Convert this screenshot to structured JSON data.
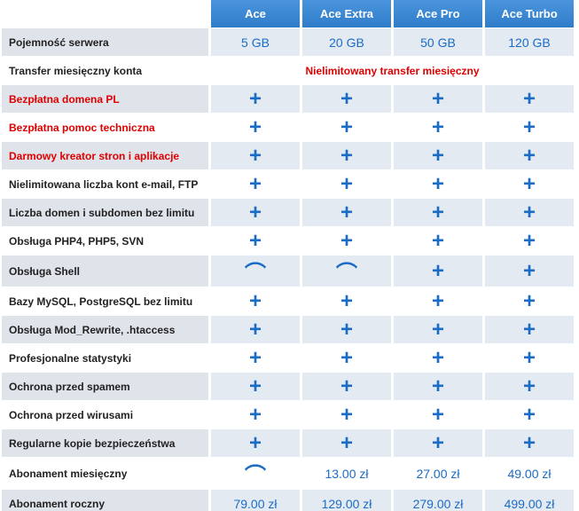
{
  "table": {
    "headers": [
      "Ace",
      "Ace Extra",
      "Ace Pro",
      "Ace Turbo"
    ],
    "rows": [
      {
        "label": "Pojemność serwera",
        "cells": [
          "5 GB",
          "20 GB",
          "50 GB",
          "120 GB"
        ]
      },
      {
        "label": "Transfer miesięczny konta",
        "cells": [
          "Nielimitowany transfer miesięczny"
        ]
      },
      {
        "label": "Bezpłatna domena PL",
        "cells": [
          "+",
          "+",
          "+",
          "+"
        ]
      },
      {
        "label": "Bezpłatna pomoc techniczna",
        "cells": [
          "+",
          "+",
          "+",
          "+"
        ]
      },
      {
        "label": "Darmowy kreator stron i aplikacje",
        "cells": [
          "+",
          "+",
          "+",
          "+"
        ]
      },
      {
        "label": "Nielimitowana liczba kont e-mail, FTP",
        "cells": [
          "+",
          "+",
          "+",
          "+"
        ]
      },
      {
        "label": "Liczba domen i subdomen bez limitu",
        "cells": [
          "+",
          "+",
          "+",
          "+"
        ]
      },
      {
        "label": "Obsługa PHP4, PHP5, SVN",
        "cells": [
          "+",
          "+",
          "+",
          "+"
        ]
      },
      {
        "label": "Obsługa Shell",
        "cells": [
          "⌒",
          "⌒",
          "+",
          "+"
        ]
      },
      {
        "label": "Bazy MySQL, PostgreSQL bez limitu",
        "cells": [
          "+",
          "+",
          "+",
          "+"
        ]
      },
      {
        "label": "Obsługa Mod_Rewrite, .htaccess",
        "cells": [
          "+",
          "+",
          "+",
          "+"
        ]
      },
      {
        "label": "Profesjonalne statystyki",
        "cells": [
          "+",
          "+",
          "+",
          "+"
        ]
      },
      {
        "label": "Ochrona przed spamem",
        "cells": [
          "+",
          "+",
          "+",
          "+"
        ]
      },
      {
        "label": "Ochrona przed wirusami",
        "cells": [
          "+",
          "+",
          "+",
          "+"
        ]
      },
      {
        "label": "Regularne kopie bezpieczeństwa",
        "cells": [
          "+",
          "+",
          "+",
          "+"
        ]
      },
      {
        "label": "Abonament miesięczny",
        "cells": [
          "⌒",
          "13.00 zł",
          "27.00 zł",
          "49.00 zł"
        ]
      },
      {
        "label": "Abonament roczny",
        "cells": [
          "79.00 zł",
          "129.00 zł",
          "279.00 zł",
          "499.00 zł"
        ]
      }
    ]
  }
}
